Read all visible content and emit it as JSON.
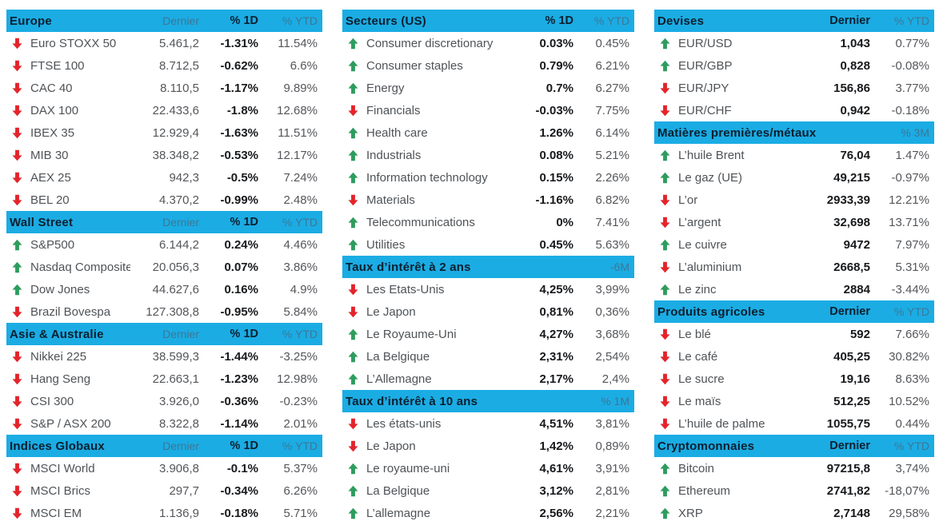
{
  "colors": {
    "header_bg": "#1BACE4",
    "header_title": "#0B1F2E",
    "header_muted": "#3D7795",
    "up_arrow": "#2E9C5E",
    "down_arrow": "#E3242B",
    "text": "#4F5357",
    "value_bold": "#17191C"
  },
  "columns": [
    {
      "tables": [
        {
          "title": "Europe",
          "header_cells": [
            {
              "text": "Dernier",
              "variant": "muted"
            },
            {
              "text": "% 1D",
              "variant": "bold"
            },
            {
              "text": "% YTD",
              "variant": "muted"
            }
          ],
          "cell_variants": [
            "normal",
            "bold",
            "normal"
          ],
          "rows": [
            {
              "dir": "down",
              "label": "Euro STOXX 50",
              "cells": [
                "5.461,2",
                "-1.31%",
                "11.54%"
              ]
            },
            {
              "dir": "down",
              "label": "FTSE 100",
              "cells": [
                "8.712,5",
                "-0.62%",
                "6.6%"
              ]
            },
            {
              "dir": "down",
              "label": "CAC 40",
              "cells": [
                "8.110,5",
                "-1.17%",
                "9.89%"
              ]
            },
            {
              "dir": "down",
              "label": "DAX 100",
              "cells": [
                "22.433,6",
                "-1.8%",
                "12.68%"
              ]
            },
            {
              "dir": "down",
              "label": "IBEX 35",
              "cells": [
                "12.929,4",
                "-1.63%",
                "11.51%"
              ]
            },
            {
              "dir": "down",
              "label": "MIB 30",
              "cells": [
                "38.348,2",
                "-0.53%",
                "12.17%"
              ]
            },
            {
              "dir": "down",
              "label": "AEX 25",
              "cells": [
                "942,3",
                "-0.5%",
                "7.24%"
              ]
            },
            {
              "dir": "down",
              "label": "BEL 20",
              "cells": [
                "4.370,2",
                "-0.99%",
                "2.48%"
              ]
            }
          ]
        },
        {
          "title": "Wall Street",
          "header_cells": [
            {
              "text": "Dernier",
              "variant": "muted"
            },
            {
              "text": "% 1D",
              "variant": "bold"
            },
            {
              "text": "% YTD",
              "variant": "muted"
            }
          ],
          "cell_variants": [
            "normal",
            "bold",
            "normal"
          ],
          "rows": [
            {
              "dir": "up",
              "label": "S&P500",
              "cells": [
                "6.144,2",
                "0.24%",
                "4.46%"
              ]
            },
            {
              "dir": "up",
              "label": "Nasdaq Composite",
              "cells": [
                "20.056,3",
                "0.07%",
                "3.86%"
              ]
            },
            {
              "dir": "up",
              "label": "Dow Jones",
              "cells": [
                "44.627,6",
                "0.16%",
                "4.9%"
              ]
            },
            {
              "dir": "down",
              "label": "Brazil Bovespa",
              "cells": [
                "127.308,8",
                "-0.95%",
                "5.84%"
              ]
            }
          ]
        },
        {
          "title": "Asie & Australie",
          "header_cells": [
            {
              "text": "Dernier",
              "variant": "muted"
            },
            {
              "text": "% 1D",
              "variant": "bold"
            },
            {
              "text": "% YTD",
              "variant": "muted"
            }
          ],
          "cell_variants": [
            "normal",
            "bold",
            "normal"
          ],
          "rows": [
            {
              "dir": "down",
              "label": "Nikkei 225",
              "cells": [
                "38.599,3",
                "-1.44%",
                "-3.25%"
              ]
            },
            {
              "dir": "down",
              "label": "Hang Seng",
              "cells": [
                "22.663,1",
                "-1.23%",
                "12.98%"
              ]
            },
            {
              "dir": "down",
              "label": "CSI 300",
              "cells": [
                "3.926,0",
                "-0.36%",
                "-0.23%"
              ]
            },
            {
              "dir": "down",
              "label": "S&P / ASX 200",
              "cells": [
                "8.322,8",
                "-1.14%",
                "2.01%"
              ]
            }
          ]
        },
        {
          "title": "Indices Globaux",
          "header_cells": [
            {
              "text": "Dernier",
              "variant": "muted"
            },
            {
              "text": "% 1D",
              "variant": "bold"
            },
            {
              "text": "% YTD",
              "variant": "muted"
            }
          ],
          "cell_variants": [
            "normal",
            "bold",
            "normal"
          ],
          "rows": [
            {
              "dir": "down",
              "label": "MSCI World",
              "cells": [
                "3.906,8",
                "-0.1%",
                "5.37%"
              ]
            },
            {
              "dir": "down",
              "label": "MSCI Brics",
              "cells": [
                "297,7",
                "-0.34%",
                "6.26%"
              ]
            },
            {
              "dir": "down",
              "label": "MSCI EM",
              "cells": [
                "1.136,9",
                "-0.18%",
                "5.71%"
              ]
            }
          ]
        }
      ]
    },
    {
      "tables": [
        {
          "title": "Secteurs (US)",
          "header_cells": [
            {
              "text": "% 1D",
              "variant": "bold"
            },
            {
              "text": "% YTD",
              "variant": "muted"
            }
          ],
          "cell_variants": [
            "bold",
            "normal"
          ],
          "rows": [
            {
              "dir": "up",
              "label": "Consumer discretionary",
              "cells": [
                "0.03%",
                "0.45%"
              ]
            },
            {
              "dir": "up",
              "label": "Consumer staples",
              "cells": [
                "0.79%",
                "6.21%"
              ]
            },
            {
              "dir": "up",
              "label": "Energy",
              "cells": [
                "0.7%",
                "6.27%"
              ]
            },
            {
              "dir": "down",
              "label": "Financials",
              "cells": [
                "-0.03%",
                "7.75%"
              ]
            },
            {
              "dir": "up",
              "label": "Health care",
              "cells": [
                "1.26%",
                "6.14%"
              ]
            },
            {
              "dir": "up",
              "label": "Industrials",
              "cells": [
                "0.08%",
                "5.21%"
              ]
            },
            {
              "dir": "up",
              "label": "Information technology",
              "cells": [
                "0.15%",
                "2.26%"
              ]
            },
            {
              "dir": "down",
              "label": "Materials",
              "cells": [
                "-1.16%",
                "6.82%"
              ]
            },
            {
              "dir": "up",
              "label": "Telecommunications",
              "cells": [
                "0%",
                "7.41%"
              ]
            },
            {
              "dir": "up",
              "label": "Utilities",
              "cells": [
                "0.45%",
                "5.63%"
              ]
            }
          ]
        },
        {
          "title": "Taux d’intérêt à 2 ans",
          "header_cells": [
            {
              "text": "",
              "variant": "muted"
            },
            {
              "text": "-6M",
              "variant": "muted"
            }
          ],
          "cell_variants": [
            "bold",
            "normal"
          ],
          "rows": [
            {
              "dir": "down",
              "label": "Les Etats-Unis",
              "cells": [
                "4,25%",
                "3,99%"
              ]
            },
            {
              "dir": "down",
              "label": "Le Japon",
              "cells": [
                "0,81%",
                "0,36%"
              ]
            },
            {
              "dir": "up",
              "label": "Le Royaume-Uni",
              "cells": [
                "4,27%",
                "3,68%"
              ]
            },
            {
              "dir": "up",
              "label": "La Belgique",
              "cells": [
                "2,31%",
                "2,54%"
              ]
            },
            {
              "dir": "up",
              "label": "L’Allemagne",
              "cells": [
                "2,17%",
                "2,4%"
              ]
            }
          ]
        },
        {
          "title": "Taux d’intérêt à 10 ans",
          "header_cells": [
            {
              "text": "",
              "variant": "muted"
            },
            {
              "text": "% 1M",
              "variant": "muted"
            }
          ],
          "cell_variants": [
            "bold",
            "normal"
          ],
          "rows": [
            {
              "dir": "down",
              "label": "Les états-unis",
              "cells": [
                "4,51%",
                "3,81%"
              ]
            },
            {
              "dir": "down",
              "label": "Le Japon",
              "cells": [
                "1,42%",
                "0,89%"
              ]
            },
            {
              "dir": "up",
              "label": "Le royaume-uni",
              "cells": [
                "4,61%",
                "3,91%"
              ]
            },
            {
              "dir": "up",
              "label": "La Belgique",
              "cells": [
                "3,12%",
                "2,81%"
              ]
            },
            {
              "dir": "up",
              "label": "L’allemagne",
              "cells": [
                "2,56%",
                "2,21%"
              ]
            }
          ]
        }
      ]
    },
    {
      "tables": [
        {
          "title": "Devises",
          "header_cells": [
            {
              "text": "Dernier",
              "variant": "bold"
            },
            {
              "text": "% YTD",
              "variant": "muted"
            }
          ],
          "cell_variants": [
            "bold",
            "normal"
          ],
          "rows": [
            {
              "dir": "up",
              "label": "EUR/USD",
              "cells": [
                "1,043",
                "0.77%"
              ]
            },
            {
              "dir": "up",
              "label": "EUR/GBP",
              "cells": [
                "0,828",
                "-0.08%"
              ]
            },
            {
              "dir": "down",
              "label": "EUR/JPY",
              "cells": [
                "156,86",
                "3.77%"
              ]
            },
            {
              "dir": "down",
              "label": "EUR/CHF",
              "cells": [
                "0,942",
                "-0.18%"
              ]
            }
          ]
        },
        {
          "title": "Matières premières/métaux",
          "header_cells": [
            {
              "text": "",
              "variant": "muted"
            },
            {
              "text": "% 3M",
              "variant": "muted"
            }
          ],
          "cell_variants": [
            "bold",
            "normal"
          ],
          "rows": [
            {
              "dir": "up",
              "label": "L’huile Brent",
              "cells": [
                "76,04",
                "1.47%"
              ]
            },
            {
              "dir": "up",
              "label": "Le gaz (UE)",
              "cells": [
                "49,215",
                "-0.97%"
              ]
            },
            {
              "dir": "down",
              "label": "L’or",
              "cells": [
                "2933,39",
                "12.21%"
              ]
            },
            {
              "dir": "down",
              "label": "L’argent",
              "cells": [
                "32,698",
                "13.71%"
              ]
            },
            {
              "dir": "up",
              "label": "Le cuivre",
              "cells": [
                "9472",
                "7.97%"
              ]
            },
            {
              "dir": "down",
              "label": "L’aluminium",
              "cells": [
                "2668,5",
                "5.31%"
              ]
            },
            {
              "dir": "up",
              "label": "Le zinc",
              "cells": [
                "2884",
                "-3.44%"
              ]
            }
          ]
        },
        {
          "title": "Produits agricoles",
          "header_cells": [
            {
              "text": "Dernier",
              "variant": "bold"
            },
            {
              "text": "% YTD",
              "variant": "muted"
            }
          ],
          "cell_variants": [
            "bold",
            "normal"
          ],
          "rows": [
            {
              "dir": "down",
              "label": "Le blé",
              "cells": [
                "592",
                "7.66%"
              ]
            },
            {
              "dir": "down",
              "label": "Le café",
              "cells": [
                "405,25",
                "30.82%"
              ]
            },
            {
              "dir": "down",
              "label": "Le sucre",
              "cells": [
                "19,16",
                "8.63%"
              ]
            },
            {
              "dir": "down",
              "label": "Le maïs",
              "cells": [
                "512,25",
                "10.52%"
              ]
            },
            {
              "dir": "down",
              "label": "L’huile de palme",
              "cells": [
                "1055,75",
                "0.44%"
              ]
            }
          ]
        },
        {
          "title": "Cryptomonnaies",
          "header_cells": [
            {
              "text": "Dernier",
              "variant": "bold"
            },
            {
              "text": "% YTD",
              "variant": "muted"
            }
          ],
          "cell_variants": [
            "bold",
            "normal"
          ],
          "rows": [
            {
              "dir": "up",
              "label": "Bitcoin",
              "cells": [
                "97215,8",
                "3,74%"
              ]
            },
            {
              "dir": "up",
              "label": "Ethereum",
              "cells": [
                "2741,82",
                "-18,07%"
              ]
            },
            {
              "dir": "up",
              "label": "XRP",
              "cells": [
                "2,7148",
                "29,58%"
              ]
            }
          ]
        }
      ]
    }
  ]
}
